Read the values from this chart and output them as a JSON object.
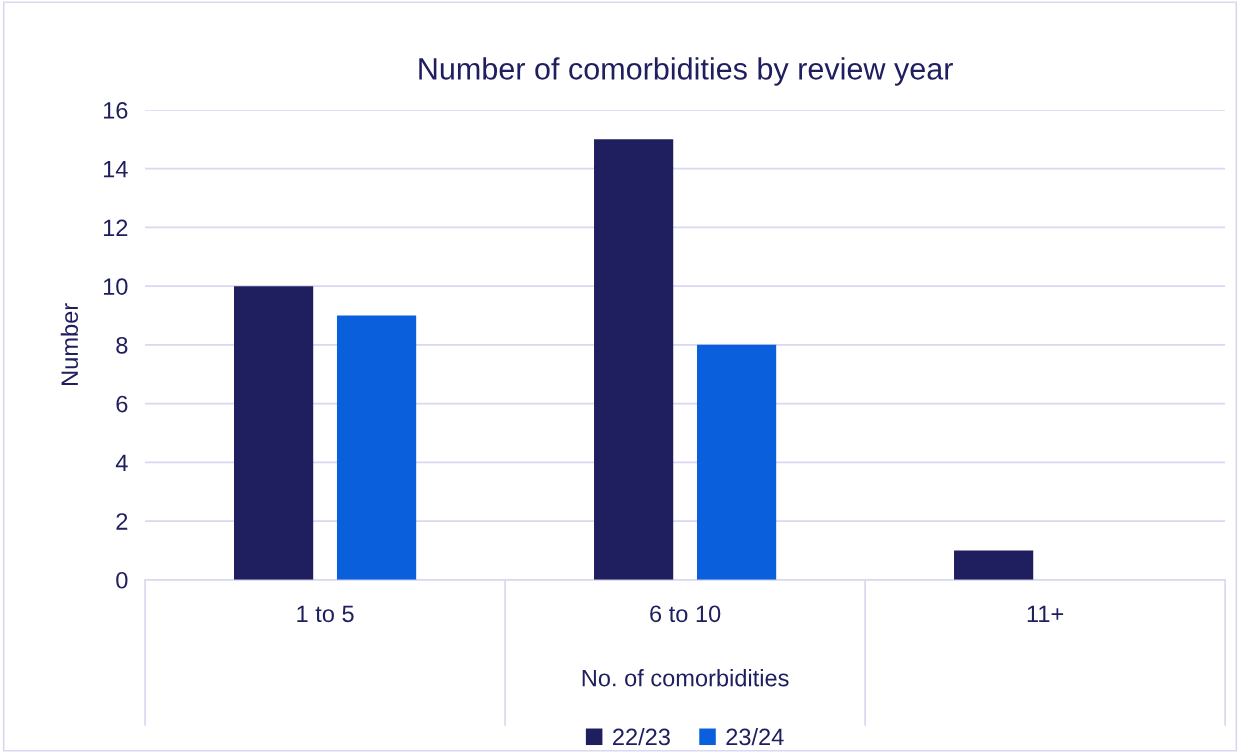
{
  "chart_data": {
    "type": "bar",
    "title": "Number of comorbidities by review year",
    "xlabel": "No. of comorbidities",
    "ylabel": "Number",
    "categories": [
      "1 to 5",
      "6 to 10",
      "11+"
    ],
    "series": [
      {
        "name": "22/23",
        "color": "#1f1f5f",
        "values": [
          10,
          15,
          1
        ]
      },
      {
        "name": "23/24",
        "color": "#0a5fdc",
        "values": [
          9,
          8,
          0
        ]
      }
    ],
    "ylim": [
      0,
      16
    ],
    "yticks": [
      0,
      2,
      4,
      6,
      8,
      10,
      12,
      14,
      16
    ],
    "grid": "y",
    "legend": "bottom"
  }
}
